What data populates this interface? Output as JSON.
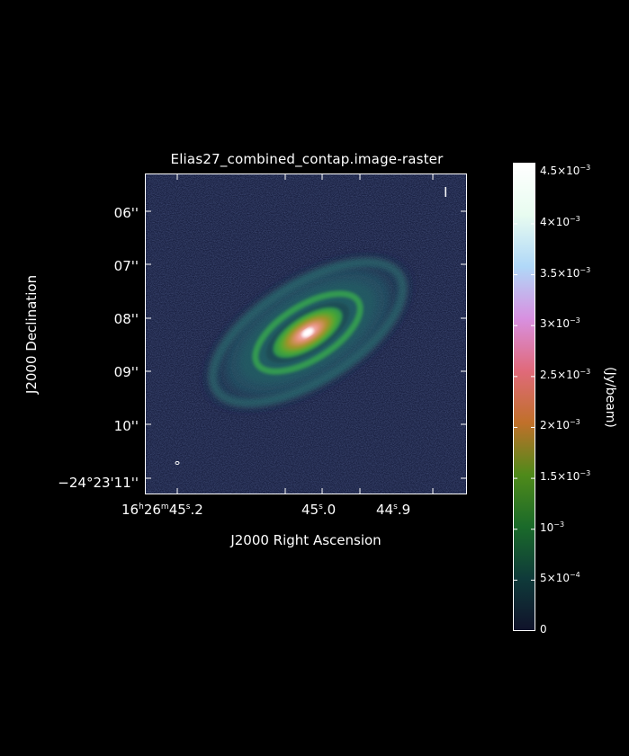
{
  "title": "Elias27_combined_contap.image-raster",
  "stokes": "I",
  "axes": {
    "xlabel": "J2000 Right Ascension",
    "ylabel": "J2000 Declination",
    "yticks": [
      "06''",
      "07''",
      "08''",
      "09''",
      "10''",
      "−24°23'11''"
    ],
    "xticks": [
      {
        "h": "16",
        "m": "26",
        "s": "45",
        "frac": ".2"
      },
      {
        "s": "45",
        "frac": ".0"
      },
      {
        "s": "44",
        "frac": ".9"
      }
    ]
  },
  "colorbar": {
    "unit": "(Jy/beam)",
    "range": [
      0,
      0.0046
    ],
    "ticks": [
      {
        "m": "4.5×10",
        "e": "−3",
        "v": 0.0045
      },
      {
        "m": "4×10",
        "e": "−3",
        "v": 0.004
      },
      {
        "m": "3.5×10",
        "e": "−3",
        "v": 0.0035
      },
      {
        "m": "3×10",
        "e": "−3",
        "v": 0.003
      },
      {
        "m": "2.5×10",
        "e": "−3",
        "v": 0.0025
      },
      {
        "m": "2×10",
        "e": "−3",
        "v": 0.002
      },
      {
        "m": "1.5×10",
        "e": "−3",
        "v": 0.0015
      },
      {
        "m": "10",
        "e": "−3",
        "v": 0.001
      },
      {
        "m": "5×10",
        "e": "−4",
        "v": 0.0005
      },
      {
        "m": "0",
        "e": "",
        "v": 0
      }
    ],
    "colors": [
      "#10122a",
      "#0f3a3a",
      "#1a6a2a",
      "#4f8a1a",
      "#c0702a",
      "#e06a7a",
      "#d890e0",
      "#b0d8f8",
      "#e8fcf0",
      "#ffffff"
    ]
  },
  "image": {
    "background_color": "#1a2142",
    "disk_colors": [
      "#2a5a6a",
      "#1d8a6a",
      "#3aa040",
      "#5cb030",
      "#e08a5a",
      "#f2a0b0",
      "#ffffff"
    ]
  }
}
